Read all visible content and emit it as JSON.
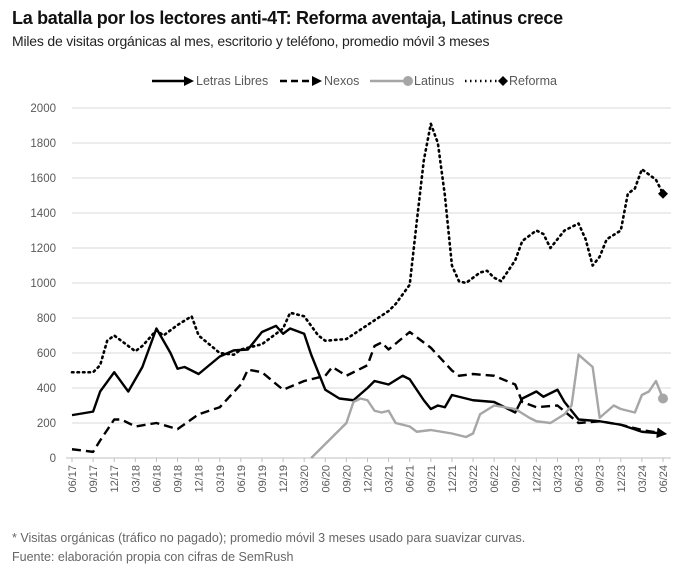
{
  "chart_data": {
    "type": "line",
    "title": "La batalla por los lectores anti-4T: Reforma aventaja, Latinus crece",
    "subtitle": "Miles de visitas orgánicas al mes, escritorio y teléfono, promedio móvil 3 meses",
    "xlabel": "",
    "ylabel": "",
    "ylim": [
      0,
      2000
    ],
    "yticks": [
      0,
      200,
      400,
      600,
      800,
      1000,
      1200,
      1400,
      1600,
      1800,
      2000
    ],
    "xticks": [
      "06/17",
      "09/17",
      "12/17",
      "03/18",
      "06/18",
      "09/18",
      "12/18",
      "03/19",
      "06/19",
      "09/19",
      "12/19",
      "03/20",
      "06/20",
      "09/20",
      "12/20",
      "03/21",
      "06/21",
      "09/21",
      "12/21",
      "03/22",
      "06/22",
      "09/22",
      "12/22",
      "03/23",
      "06/23",
      "09/23",
      "12/23",
      "03/24",
      "06/24"
    ],
    "grid": true,
    "legend": "top",
    "series": [
      {
        "name": "Letras Libres",
        "color": "#000000",
        "style": "solid",
        "marker": "arrow",
        "x": [
          "06/17",
          "09/17",
          "10/17",
          "12/17",
          "02/18",
          "04/18",
          "06/18",
          "08/18",
          "09/18",
          "10/18",
          "12/18",
          "03/19",
          "05/19",
          "07/19",
          "09/19",
          "11/19",
          "12/19",
          "01/20",
          "03/20",
          "04/20",
          "06/20",
          "08/20",
          "10/20",
          "12/20",
          "01/21",
          "03/21",
          "05/21",
          "06/21",
          "08/21",
          "09/21",
          "10/21",
          "11/21",
          "12/21",
          "03/22",
          "06/22",
          "09/22",
          "10/22",
          "12/22",
          "01/23",
          "03/23",
          "04/23",
          "06/23",
          "09/23",
          "12/23",
          "03/24",
          "06/24"
        ],
        "y": [
          245,
          265,
          380,
          490,
          380,
          520,
          740,
          600,
          510,
          520,
          480,
          580,
          615,
          620,
          720,
          755,
          710,
          740,
          710,
          590,
          390,
          340,
          330,
          400,
          440,
          420,
          470,
          450,
          330,
          280,
          300,
          290,
          360,
          330,
          320,
          260,
          340,
          380,
          350,
          390,
          320,
          220,
          210,
          190,
          150,
          140
        ]
      },
      {
        "name": "Nexos",
        "color": "#000000",
        "style": "dashed",
        "marker": "arrow",
        "x": [
          "06/17",
          "09/17",
          "10/17",
          "12/17",
          "01/18",
          "03/18",
          "06/18",
          "09/18",
          "12/18",
          "03/19",
          "06/19",
          "07/19",
          "09/19",
          "12/19",
          "03/20",
          "06/20",
          "07/20",
          "09/20",
          "12/20",
          "01/21",
          "02/21",
          "03/21",
          "06/21",
          "09/21",
          "12/21",
          "01/22",
          "03/22",
          "06/22",
          "09/22",
          "10/22",
          "12/22",
          "03/23",
          "06/23",
          "09/23",
          "12/23",
          "03/24",
          "06/24"
        ],
        "y": [
          50,
          35,
          100,
          220,
          220,
          180,
          200,
          165,
          250,
          290,
          420,
          505,
          490,
          390,
          440,
          470,
          520,
          470,
          530,
          640,
          660,
          620,
          720,
          630,
          500,
          470,
          480,
          470,
          420,
          320,
          290,
          300,
          200,
          210,
          190,
          160,
          140
        ]
      },
      {
        "name": "Latinus",
        "color": "#a6a6a6",
        "style": "solid",
        "marker": "circle",
        "x": [
          "04/20",
          "06/20",
          "08/20",
          "09/20",
          "10/20",
          "11/20",
          "12/20",
          "01/21",
          "02/21",
          "03/21",
          "04/21",
          "06/21",
          "07/21",
          "09/21",
          "12/21",
          "02/22",
          "03/22",
          "04/22",
          "06/22",
          "09/22",
          "11/22",
          "12/22",
          "02/23",
          "04/23",
          "05/23",
          "06/23",
          "08/23",
          "09/23",
          "11/23",
          "12/23",
          "02/24",
          "03/24",
          "04/24",
          "05/24",
          "06/24"
        ],
        "y": [
          0,
          80,
          160,
          200,
          320,
          340,
          330,
          270,
          260,
          270,
          200,
          180,
          150,
          160,
          140,
          120,
          140,
          250,
          300,
          280,
          230,
          210,
          200,
          250,
          300,
          590,
          520,
          230,
          300,
          280,
          260,
          360,
          380,
          440,
          340
        ]
      },
      {
        "name": "Reforma",
        "color": "#000000",
        "style": "dotted",
        "marker": "diamond",
        "x": [
          "06/17",
          "09/17",
          "10/17",
          "11/17",
          "12/17",
          "02/18",
          "03/18",
          "04/18",
          "06/18",
          "07/18",
          "09/18",
          "11/18",
          "12/18",
          "03/19",
          "05/19",
          "06/19",
          "09/19",
          "12/19",
          "01/20",
          "03/20",
          "05/20",
          "06/20",
          "09/20",
          "12/20",
          "03/21",
          "04/21",
          "06/21",
          "07/21",
          "08/21",
          "09/21",
          "10/21",
          "11/21",
          "12/21",
          "01/22",
          "02/22",
          "04/22",
          "05/22",
          "06/22",
          "07/22",
          "09/22",
          "10/22",
          "12/22",
          "01/23",
          "02/23",
          "04/23",
          "06/23",
          "07/23",
          "08/23",
          "09/23",
          "10/23",
          "12/23",
          "01/24",
          "02/24",
          "03/24",
          "04/24",
          "05/24",
          "06/24"
        ],
        "y": [
          490,
          490,
          530,
          670,
          700,
          640,
          610,
          640,
          730,
          700,
          760,
          810,
          700,
          600,
          590,
          620,
          650,
          740,
          830,
          810,
          700,
          670,
          680,
          760,
          840,
          880,
          990,
          1350,
          1700,
          1910,
          1800,
          1500,
          1100,
          1010,
          1000,
          1060,
          1070,
          1030,
          1010,
          1130,
          1240,
          1300,
          1280,
          1200,
          1300,
          1340,
          1250,
          1100,
          1150,
          1250,
          1300,
          1510,
          1540,
          1650,
          1620,
          1590,
          1510
        ]
      }
    ]
  },
  "footnotes": {
    "note": "* Visitas orgánicas (tráfico no pagado); promedio móvil 3 meses usado para suavizar curvas.",
    "source": "Fuente: elaboración propia con cifras de SemRush"
  }
}
